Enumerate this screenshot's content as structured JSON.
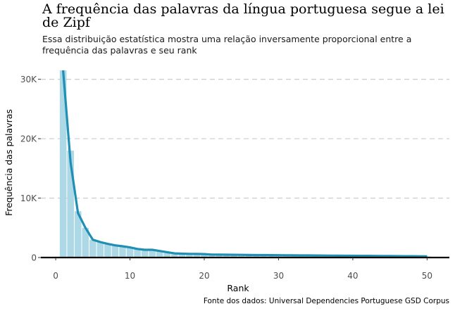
{
  "chart_data": {
    "type": "bar",
    "title": "A frequência das palavras da língua portuguesa segue a lei de Zipf",
    "subtitle": "Essa distribuição estatística mostra uma relação inversamente proporcional entre a frequência das palavras e seu rank",
    "caption": "Fonte dos dados: Universal Dependencies Portuguese GSD Corpus",
    "xlabel": "Rank",
    "ylabel": "Frequência das palavras",
    "xlim": [
      -2,
      53
    ],
    "ylim": [
      0,
      31500
    ],
    "xticks": [
      0,
      10,
      20,
      30,
      40,
      50
    ],
    "xtick_labels": [
      "0",
      "10",
      "20",
      "30",
      "40",
      "50"
    ],
    "yticks": [
      0,
      10000,
      20000,
      30000
    ],
    "ytick_labels": [
      "0",
      "10K",
      "20K",
      "30K"
    ],
    "grid": "horizontal dashed",
    "bar_color": "#add8e6",
    "line_color": "#1f8fb3",
    "x": [
      1,
      2,
      3,
      4,
      5,
      6,
      7,
      8,
      9,
      10,
      11,
      12,
      13,
      14,
      15,
      16,
      17,
      18,
      19,
      20,
      21,
      22,
      23,
      24,
      25,
      26,
      27,
      28,
      29,
      30,
      31,
      32,
      33,
      34,
      35,
      36,
      37,
      38,
      39,
      40,
      41,
      42,
      43,
      44,
      45,
      46,
      47,
      48,
      49,
      50
    ],
    "values": [
      32000,
      18000,
      7800,
      5000,
      3000,
      2600,
      2300,
      2000,
      1900,
      1700,
      1600,
      1400,
      1300,
      1150,
      900,
      700,
      650,
      620,
      600,
      580,
      500,
      480,
      470,
      460,
      450,
      430,
      420,
      410,
      400,
      390,
      380,
      370,
      360,
      350,
      340,
      330,
      320,
      310,
      300,
      300,
      290,
      280,
      270,
      260,
      250,
      240,
      230,
      220,
      210,
      200
    ],
    "line_y": [
      31500,
      16000,
      7500,
      5000,
      3000,
      2600,
      2300,
      2050,
      1900,
      1700,
      1450,
      1300,
      1300,
      1100,
      900,
      700,
      650,
      620,
      600,
      580,
      500,
      480,
      470,
      460,
      450,
      430,
      420,
      410,
      400,
      390,
      380,
      370,
      360,
      350,
      340,
      330,
      320,
      310,
      300,
      300,
      290,
      280,
      270,
      260,
      250,
      240,
      230,
      220,
      210,
      200
    ]
  }
}
